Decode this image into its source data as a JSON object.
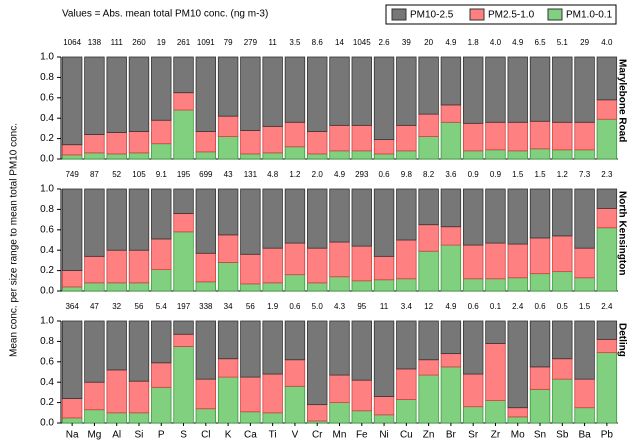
{
  "title": "Values = Abs. mean total PM10 conc. (ng m-3)",
  "ylabel": "Mean conc. per size range to mean total PM10 conc.",
  "legend": [
    {
      "name": "PM10-2.5",
      "color": "#777777"
    },
    {
      "name": "PM2.5-1.0",
      "color": "#ff8080"
    },
    {
      "name": "PM1.0-0.1",
      "color": "#80d080"
    }
  ],
  "categories": [
    "Na",
    "Mg",
    "Al",
    "Si",
    "P",
    "S",
    "Cl",
    "K",
    "Ca",
    "Ti",
    "V",
    "Cr",
    "Mn",
    "Fe",
    "Ni",
    "Cu",
    "Zn",
    "Br",
    "Sr",
    "Zr",
    "Mo",
    "Sn",
    "Sb",
    "Ba",
    "Pb"
  ],
  "chart_data": [
    {
      "type": "bar",
      "stacked": true,
      "site": "Marylebone Road",
      "ylim": [
        0,
        1
      ],
      "yticks": [
        {
          "value": 0,
          "label": "0.0"
        },
        0.2,
        0.4,
        0.6,
        0.8,
        {
          "value": 1,
          "label": "1.0"
        }
      ],
      "annotations": [
        "1064",
        "138",
        "111",
        "260",
        "19",
        "261",
        "1091",
        "79",
        "279",
        "11",
        "3.5",
        "8.6",
        "14",
        "1045",
        "2.6",
        "39",
        "20",
        "4.9",
        "1.8",
        "4.0",
        "4.9",
        "6.5",
        "5.1",
        "29",
        "4.0"
      ],
      "series": [
        {
          "values": [
            0.86,
            0.76,
            0.74,
            0.73,
            0.62,
            0.35,
            0.73,
            0.58,
            0.72,
            0.68,
            0.64,
            0.73,
            0.67,
            0.67,
            0.81,
            0.67,
            0.56,
            0.47,
            0.65,
            0.64,
            0.64,
            0.63,
            0.64,
            0.64,
            0.42
          ]
        },
        {
          "values": [
            0.1,
            0.18,
            0.21,
            0.21,
            0.23,
            0.17,
            0.2,
            0.2,
            0.23,
            0.26,
            0.24,
            0.22,
            0.25,
            0.25,
            0.14,
            0.25,
            0.22,
            0.17,
            0.27,
            0.27,
            0.28,
            0.27,
            0.27,
            0.27,
            0.19
          ]
        },
        {
          "values": [
            0.04,
            0.06,
            0.05,
            0.06,
            0.15,
            0.48,
            0.07,
            0.22,
            0.05,
            0.06,
            0.12,
            0.05,
            0.08,
            0.08,
            0.05,
            0.08,
            0.22,
            0.36,
            0.08,
            0.09,
            0.08,
            0.1,
            0.09,
            0.09,
            0.39
          ]
        }
      ]
    },
    {
      "type": "bar",
      "stacked": true,
      "site": "North Kensington",
      "ylim": [
        0,
        1
      ],
      "yticks": [
        {
          "value": 0,
          "label": "0.0"
        },
        0.2,
        0.4,
        0.6,
        0.8,
        {
          "value": 1,
          "label": "1.0"
        }
      ],
      "annotations": [
        "749",
        "87",
        "52",
        "105",
        "9.1",
        "195",
        "699",
        "43",
        "131",
        "4.8",
        "1.2",
        "2.0",
        "4.9",
        "293",
        "0.6",
        "9.8",
        "8.2",
        "3.6",
        "0.9",
        "0.9",
        "1.5",
        "1.5",
        "1.2",
        "7.3",
        "2.3"
      ],
      "series": [
        {
          "values": [
            0.8,
            0.66,
            0.6,
            0.6,
            0.49,
            0.24,
            0.63,
            0.45,
            0.64,
            0.58,
            0.53,
            0.58,
            0.52,
            0.56,
            0.66,
            0.5,
            0.35,
            0.37,
            0.55,
            0.53,
            0.54,
            0.48,
            0.46,
            0.58,
            0.19
          ]
        },
        {
          "values": [
            0.16,
            0.26,
            0.32,
            0.32,
            0.3,
            0.18,
            0.28,
            0.27,
            0.29,
            0.34,
            0.31,
            0.34,
            0.34,
            0.34,
            0.23,
            0.38,
            0.26,
            0.18,
            0.33,
            0.35,
            0.33,
            0.35,
            0.35,
            0.29,
            0.19
          ]
        },
        {
          "values": [
            0.04,
            0.08,
            0.08,
            0.08,
            0.21,
            0.58,
            0.09,
            0.28,
            0.07,
            0.08,
            0.16,
            0.08,
            0.14,
            0.1,
            0.11,
            0.12,
            0.39,
            0.45,
            0.12,
            0.12,
            0.13,
            0.17,
            0.19,
            0.13,
            0.62
          ]
        }
      ]
    },
    {
      "type": "bar",
      "stacked": true,
      "site": "Detling",
      "ylim": [
        0,
        1
      ],
      "yticks": [
        {
          "value": 0,
          "label": "0.0"
        },
        0.2,
        0.4,
        0.6,
        0.8,
        {
          "value": 1,
          "label": "1.0"
        }
      ],
      "annotations": [
        "364",
        "47",
        "32",
        "56",
        "5.4",
        "197",
        "338",
        "34",
        "56",
        "1.9",
        "0.6",
        "5.0",
        "4.3",
        "95",
        "11",
        "3.4",
        "12",
        "4.9",
        "0.6",
        "0.1",
        "2.4",
        "0.6",
        "0.5",
        "1.5",
        "2.4"
      ],
      "series": [
        {
          "values": [
            0.76,
            0.6,
            0.48,
            0.59,
            0.41,
            0.13,
            0.57,
            0.37,
            0.55,
            0.52,
            0.38,
            0.82,
            0.53,
            0.58,
            0.74,
            0.47,
            0.38,
            0.32,
            0.52,
            0.22,
            0.85,
            0.45,
            0.37,
            0.57,
            0.18
          ]
        },
        {
          "values": [
            0.19,
            0.27,
            0.42,
            0.31,
            0.24,
            0.12,
            0.29,
            0.18,
            0.34,
            0.38,
            0.26,
            0.16,
            0.27,
            0.3,
            0.18,
            0.3,
            0.15,
            0.13,
            0.32,
            0.56,
            0.09,
            0.22,
            0.2,
            0.28,
            0.13
          ]
        },
        {
          "values": [
            0.05,
            0.13,
            0.1,
            0.1,
            0.35,
            0.75,
            0.14,
            0.45,
            0.11,
            0.1,
            0.36,
            0.02,
            0.2,
            0.12,
            0.08,
            0.23,
            0.47,
            0.55,
            0.16,
            0.22,
            0.06,
            0.33,
            0.43,
            0.15,
            0.69
          ]
        }
      ]
    }
  ]
}
